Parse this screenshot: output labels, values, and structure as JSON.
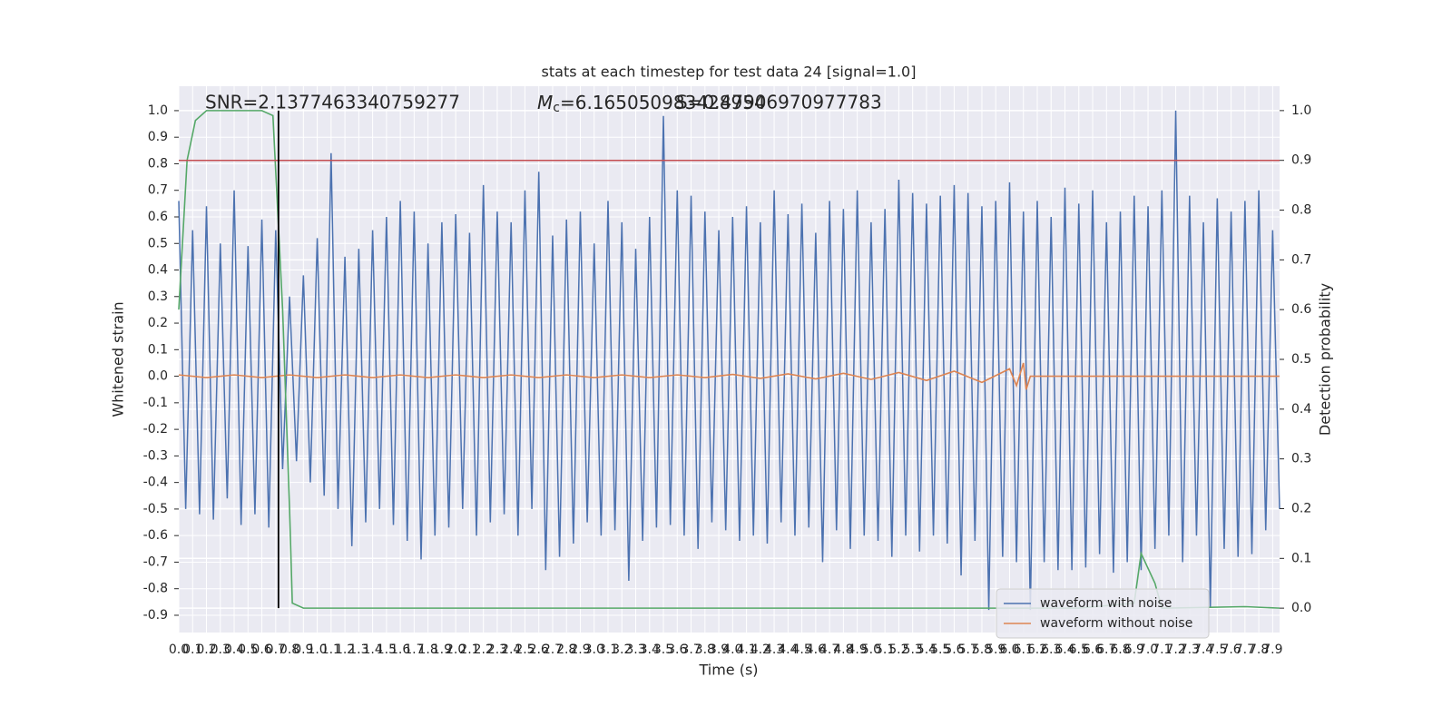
{
  "chart_data": {
    "type": "line",
    "title": "stats at each timestep for test data 24 [signal=1.0]",
    "xlabel": "Time (s)",
    "ylabel": "Whitened strain",
    "y2label": "Detection probability",
    "annotations": [
      "SNR=2.1377463340759277",
      "S=0.47906970977783"
    ],
    "mc_annotation": {
      "symbol": "M",
      "subscript": "c",
      "value": "=6.165050983428954"
    },
    "grid": true,
    "legend": "lower right",
    "xlim": [
      0,
      7.95
    ],
    "ylim": [
      -0.965,
      1.092
    ],
    "y2lim": [
      -0.049,
      1.049
    ],
    "xticks": [
      {
        "value": 0,
        "label": "0.0"
      },
      0.1,
      0.2,
      0.3,
      0.4,
      0.5,
      0.6,
      0.7,
      0.8,
      0.9,
      {
        "value": 1,
        "label": "1.0"
      },
      1.1,
      1.2,
      1.3,
      1.4,
      1.5,
      1.6,
      1.7,
      1.8,
      1.9,
      {
        "value": 2,
        "label": "2.0"
      },
      2.1,
      2.2,
      2.3,
      2.4,
      2.5,
      2.6,
      2.7,
      2.8,
      2.9,
      {
        "value": 3,
        "label": "3.0"
      },
      3.1,
      3.2,
      3.3,
      3.4,
      3.5,
      3.6,
      3.7,
      3.8,
      3.9,
      {
        "value": 4,
        "label": "4.0"
      },
      4.1,
      4.2,
      4.3,
      4.4,
      4.5,
      4.6,
      4.7,
      4.8,
      4.9,
      {
        "value": 5,
        "label": "5.0"
      },
      5.1,
      5.2,
      5.3,
      5.4,
      5.5,
      5.6,
      5.7,
      5.8,
      5.9,
      {
        "value": 6,
        "label": "6.0"
      },
      6.1,
      6.2,
      6.3,
      6.4,
      6.5,
      6.6,
      6.7,
      6.8,
      6.9,
      {
        "value": 7,
        "label": "7.0"
      },
      7.1,
      7.2,
      7.3,
      7.4,
      7.5,
      7.6,
      7.7,
      7.8,
      7.9
    ],
    "yticks": [
      {
        "value": 1,
        "label": "1.0"
      },
      0.9,
      0.8,
      0.7,
      0.6,
      0.5,
      0.4,
      0.3,
      0.2,
      0.1,
      {
        "value": 0,
        "label": "0.0"
      },
      -0.1,
      -0.2,
      -0.3,
      -0.4,
      -0.5,
      -0.6,
      -0.7,
      -0.8,
      -0.9
    ],
    "y2ticks": [
      {
        "value": 1,
        "label": "1.0"
      },
      0.9,
      0.8,
      0.7,
      0.6,
      0.5,
      0.4,
      0.3,
      0.2,
      0.1,
      {
        "value": 0,
        "label": "0.0"
      }
    ],
    "series": [
      {
        "name": "waveform with noise",
        "color": "#4c72b0",
        "x": [
          0,
          0.05,
          0.1,
          0.15,
          0.2,
          0.25,
          0.3,
          0.35,
          0.4,
          0.45,
          0.5,
          0.55,
          0.6,
          0.65,
          0.7,
          0.75,
          0.8,
          0.85,
          0.9,
          0.95,
          1,
          1.05,
          1.1,
          1.15,
          1.2,
          1.25,
          1.3,
          1.35,
          1.4,
          1.45,
          1.5,
          1.55,
          1.6,
          1.65,
          1.7,
          1.75,
          1.8,
          1.85,
          1.9,
          1.95,
          2,
          2.05,
          2.1,
          2.15,
          2.2,
          2.25,
          2.3,
          2.35,
          2.4,
          2.45,
          2.5,
          2.55,
          2.6,
          2.65,
          2.7,
          2.75,
          2.8,
          2.85,
          2.9,
          2.95,
          3,
          3.05,
          3.1,
          3.15,
          3.2,
          3.25,
          3.3,
          3.35,
          3.4,
          3.45,
          3.5,
          3.55,
          3.6,
          3.65,
          3.7,
          3.75,
          3.8,
          3.85,
          3.9,
          3.95,
          4,
          4.05,
          4.1,
          4.15,
          4.2,
          4.25,
          4.3,
          4.35,
          4.4,
          4.45,
          4.5,
          4.55,
          4.6,
          4.65,
          4.7,
          4.75,
          4.8,
          4.85,
          4.9,
          4.95,
          5,
          5.05,
          5.1,
          5.15,
          5.2,
          5.25,
          5.3,
          5.35,
          5.4,
          5.45,
          5.5,
          5.55,
          5.6,
          5.65,
          5.7,
          5.75,
          5.8,
          5.85,
          5.9,
          5.95,
          6,
          6.05,
          6.1,
          6.15,
          6.2,
          6.25,
          6.3,
          6.35,
          6.4,
          6.45,
          6.5,
          6.55,
          6.6,
          6.65,
          6.7,
          6.75,
          6.8,
          6.85,
          6.9,
          6.95,
          7,
          7.05,
          7.1,
          7.15,
          7.2,
          7.25,
          7.3,
          7.35,
          7.4,
          7.45,
          7.5,
          7.55,
          7.6,
          7.65,
          7.7,
          7.75,
          7.8,
          7.85,
          7.9,
          7.95
        ],
        "values": [
          0.66,
          -0.5,
          0.55,
          -0.52,
          0.64,
          -0.54,
          0.5,
          -0.46,
          0.7,
          -0.56,
          0.49,
          -0.52,
          0.59,
          -0.57,
          0.55,
          -0.35,
          0.3,
          -0.32,
          0.38,
          -0.4,
          0.52,
          -0.45,
          0.84,
          -0.5,
          0.45,
          -0.64,
          0.48,
          -0.55,
          0.55,
          -0.5,
          0.6,
          -0.56,
          0.66,
          -0.62,
          0.62,
          -0.69,
          0.5,
          -0.6,
          0.58,
          -0.57,
          0.61,
          -0.5,
          0.54,
          -0.6,
          0.72,
          -0.55,
          0.62,
          -0.52,
          0.58,
          -0.6,
          0.7,
          -0.5,
          0.77,
          -0.73,
          0.53,
          -0.68,
          0.59,
          -0.63,
          0.62,
          -0.55,
          0.5,
          -0.6,
          0.66,
          -0.58,
          0.58,
          -0.77,
          0.48,
          -0.62,
          0.6,
          -0.57,
          0.98,
          -0.56,
          0.7,
          -0.6,
          0.68,
          -0.65,
          0.62,
          -0.55,
          0.55,
          -0.58,
          0.6,
          -0.62,
          0.64,
          -0.6,
          0.58,
          -0.63,
          0.7,
          -0.55,
          0.61,
          -0.6,
          0.65,
          -0.57,
          0.54,
          -0.7,
          0.66,
          -0.58,
          0.63,
          -0.65,
          0.7,
          -0.6,
          0.58,
          -0.62,
          0.63,
          -0.68,
          0.74,
          -0.6,
          0.69,
          -0.66,
          0.65,
          -0.6,
          0.68,
          -0.63,
          0.72,
          -0.75,
          0.69,
          -0.62,
          0.64,
          -0.88,
          0.66,
          -0.68,
          0.73,
          -0.7,
          0.62,
          -0.88,
          0.66,
          -0.7,
          0.6,
          -0.73,
          0.71,
          -0.73,
          0.65,
          -0.72,
          0.7,
          -0.67,
          0.58,
          -0.74,
          0.62,
          -0.7,
          0.68,
          -0.73,
          0.64,
          -0.65,
          0.7,
          -0.6,
          1.0,
          -0.7,
          0.68,
          -0.6,
          0.58,
          -0.87,
          0.67,
          -0.65,
          0.62,
          -0.68,
          0.66,
          -0.67,
          0.7,
          -0.58,
          0.55,
          -0.5
        ]
      },
      {
        "name": "waveform without noise",
        "color": "#dd8452",
        "x": [
          0,
          0.2,
          0.4,
          0.6,
          0.8,
          1,
          1.2,
          1.4,
          1.6,
          1.8,
          2,
          2.2,
          2.4,
          2.6,
          2.8,
          3,
          3.2,
          3.4,
          3.6,
          3.8,
          4,
          4.2,
          4.4,
          4.6,
          4.8,
          5,
          5.2,
          5.4,
          5.6,
          5.8,
          6,
          6.05,
          6.1,
          6.12,
          6.15,
          7.95
        ],
        "values": [
          0.005,
          -0.005,
          0.005,
          -0.005,
          0.005,
          -0.005,
          0.005,
          -0.005,
          0.005,
          -0.005,
          0.005,
          -0.005,
          0.005,
          -0.005,
          0.005,
          -0.005,
          0.005,
          -0.005,
          0.005,
          -0.005,
          0.007,
          -0.008,
          0.009,
          -0.01,
          0.011,
          -0.012,
          0.014,
          -0.016,
          0.019,
          -0.023,
          0.028,
          -0.035,
          0.05,
          -0.05,
          0,
          0
        ]
      },
      {
        "color": "#55a868",
        "axis": "y2",
        "x": [
          0,
          0.06,
          0.12,
          0.2,
          0.6,
          0.68,
          0.75,
          0.8,
          0.82,
          0.9,
          6.5,
          6.9,
          6.95,
          7.05,
          7.1,
          7.7,
          7.95
        ],
        "values": [
          0.6,
          0.9,
          0.98,
          1.0,
          1.0,
          0.99,
          0.6,
          0.2,
          0.01,
          0.0,
          0.0,
          0.01,
          0.11,
          0.05,
          0.0,
          0.003,
          0.0
        ]
      }
    ],
    "hline": {
      "y": 0.9,
      "axis": "y2",
      "color": "#c44e52"
    },
    "vline": {
      "x": 0.72,
      "ymin": 0,
      "ymax": 1,
      "axis": "y2",
      "color": "#000000"
    }
  }
}
